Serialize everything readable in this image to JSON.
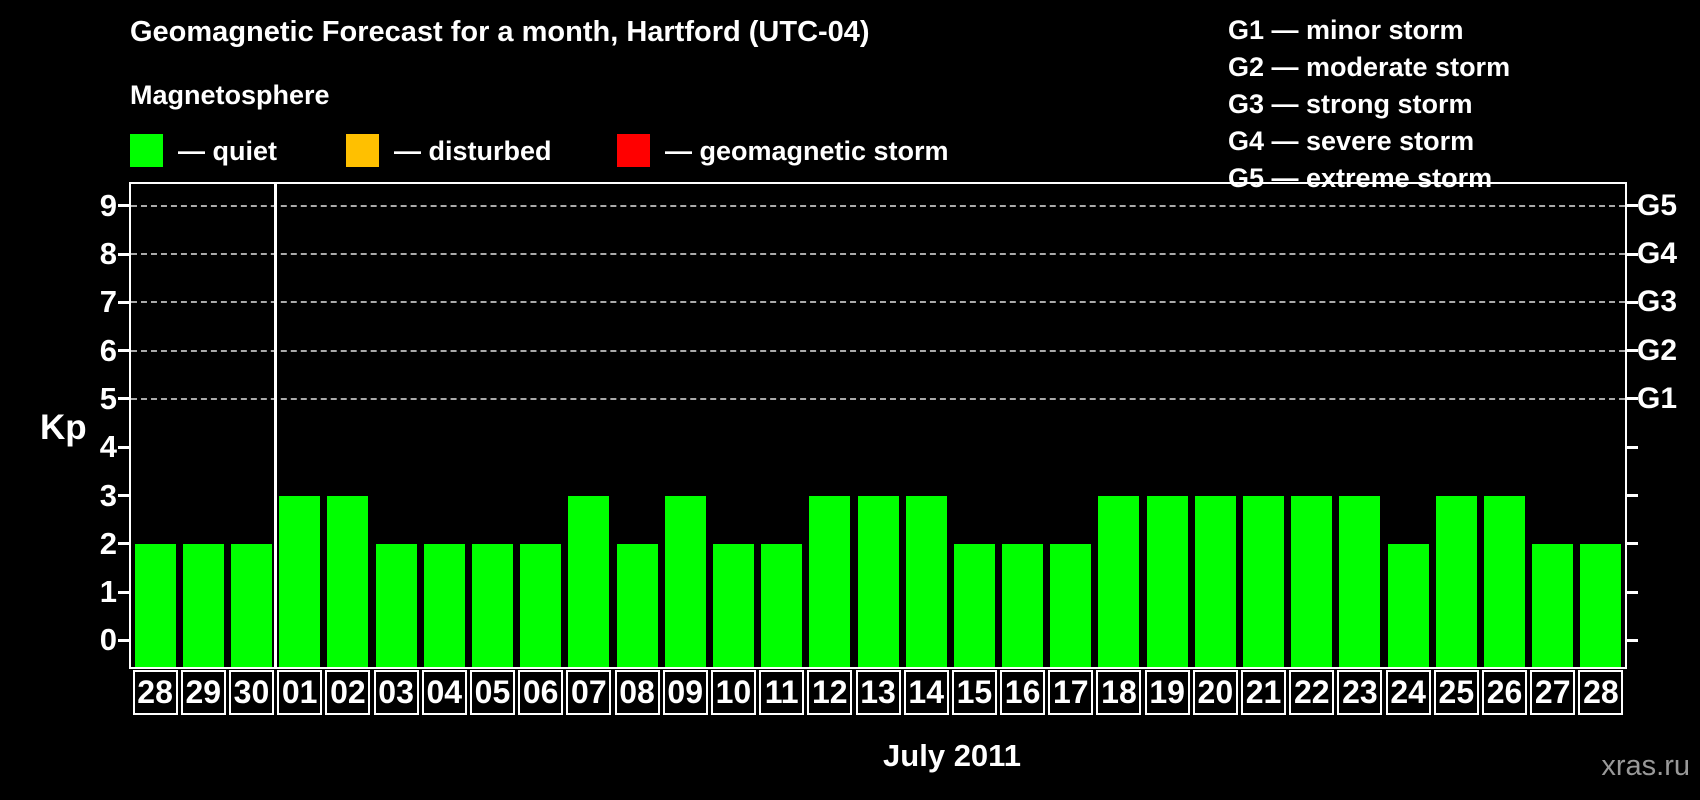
{
  "title": "Geomagnetic Forecast for a month, Hartford (UTC-04)",
  "legend": {
    "heading": "Magnetosphere",
    "items": [
      {
        "label": "— quiet",
        "color": "#00ff00"
      },
      {
        "label": "— disturbed",
        "color": "#ffc000"
      },
      {
        "label": "— geomagnetic storm",
        "color": "#ff0000"
      }
    ]
  },
  "storm_scale_legend": [
    "G1 — minor storm",
    "G2 — moderate storm",
    "G3 — strong storm",
    "G4 — severe storm",
    "G5 — extreme storm"
  ],
  "watermark": "xras.ru",
  "chart_data": {
    "type": "bar",
    "title": "Geomagnetic Forecast for a month, Hartford (UTC-04)",
    "xlabel": "July 2011",
    "ylabel": "Kp",
    "categories": [
      "28",
      "29",
      "30",
      "01",
      "02",
      "03",
      "04",
      "05",
      "06",
      "07",
      "08",
      "09",
      "10",
      "11",
      "12",
      "13",
      "14",
      "15",
      "16",
      "17",
      "18",
      "19",
      "20",
      "21",
      "22",
      "23",
      "24",
      "25",
      "26",
      "27",
      "28"
    ],
    "values": [
      2,
      2,
      2,
      3,
      3,
      2,
      2,
      2,
      2,
      3,
      2,
      3,
      2,
      2,
      3,
      3,
      3,
      2,
      2,
      2,
      3,
      3,
      3,
      3,
      3,
      3,
      2,
      3,
      3,
      2,
      2
    ],
    "bar_color": "#00ff00",
    "background": "#000000",
    "ylim": [
      -0.55,
      9.45
    ],
    "yticks": [
      0,
      1,
      2,
      3,
      4,
      5,
      6,
      7,
      8,
      9
    ],
    "gridlines_at": [
      5,
      6,
      7,
      8,
      9
    ],
    "grid_style": "dashed",
    "right_axis_labels": [
      {
        "kp": 9,
        "label": "G5"
      },
      {
        "kp": 8,
        "label": "G4"
      },
      {
        "kp": 7,
        "label": "G3"
      },
      {
        "kp": 6,
        "label": "G2"
      },
      {
        "kp": 5,
        "label": "G1"
      }
    ],
    "month_separator_after_index": 2,
    "legend_position": "top"
  }
}
